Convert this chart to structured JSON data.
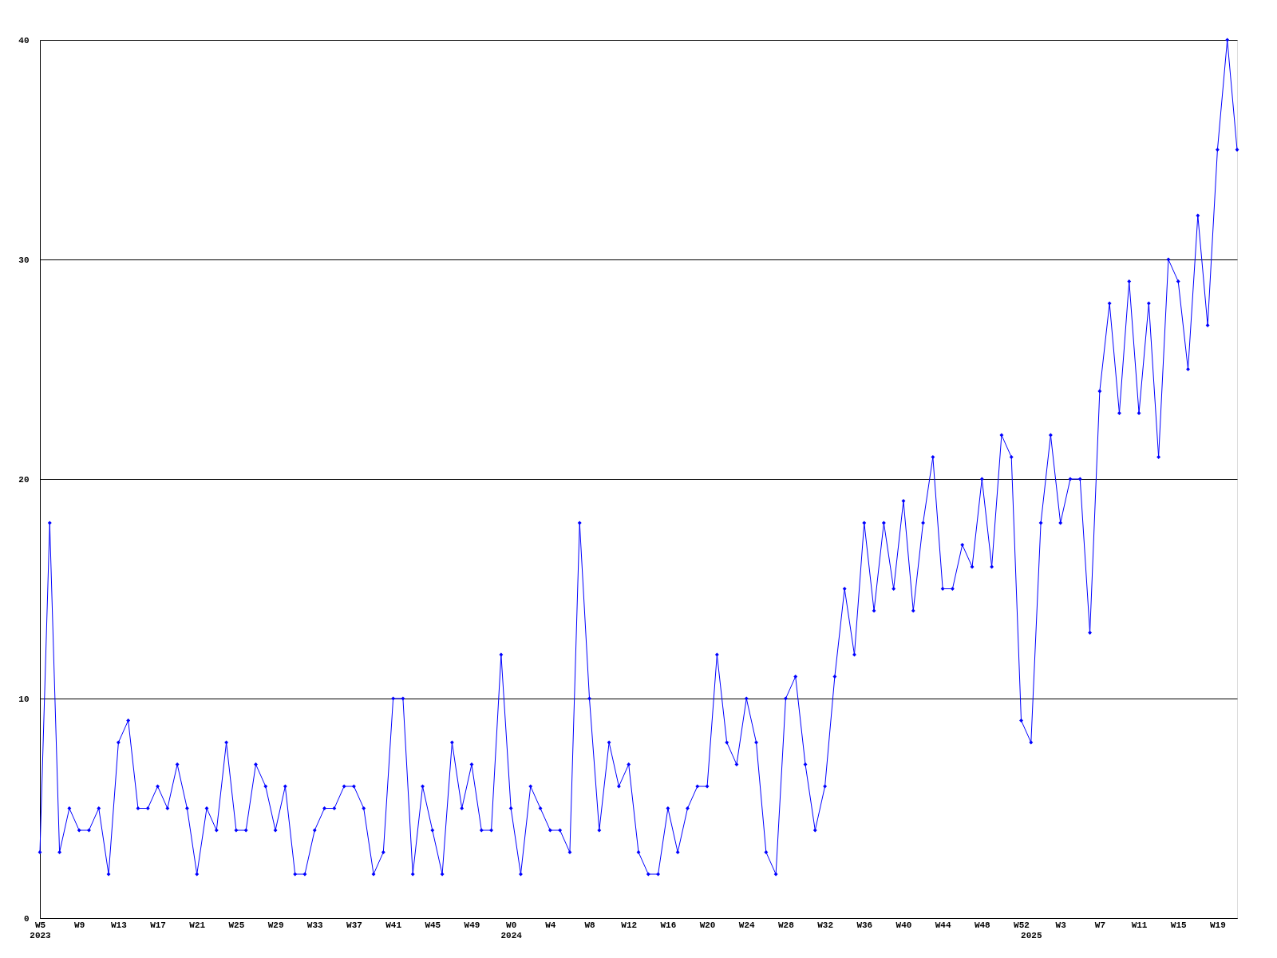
{
  "chart_data": {
    "type": "line",
    "categories": [
      "W5\n2023",
      null,
      null,
      null,
      "W9",
      null,
      null,
      null,
      "W13",
      null,
      null,
      null,
      "W17",
      null,
      null,
      null,
      "W21",
      null,
      null,
      null,
      "W25",
      null,
      null,
      null,
      "W29",
      null,
      null,
      null,
      "W33",
      null,
      null,
      null,
      "W37",
      null,
      null,
      null,
      "W41",
      null,
      null,
      null,
      "W45",
      null,
      null,
      null,
      "W49",
      null,
      null,
      null,
      "W0\n2024",
      null,
      null,
      null,
      "W4",
      null,
      null,
      null,
      "W8",
      null,
      null,
      null,
      "W12",
      null,
      null,
      null,
      "W16",
      null,
      null,
      null,
      "W20",
      null,
      null,
      null,
      "W24",
      null,
      null,
      null,
      "W28",
      null,
      null,
      null,
      "W32",
      null,
      null,
      null,
      "W36",
      null,
      null,
      null,
      "W40",
      null,
      null,
      null,
      "W44",
      null,
      null,
      null,
      "W48",
      null,
      null,
      null,
      "W52",
      "\n2025",
      null,
      null,
      "W3",
      null,
      null,
      null,
      "W7",
      null,
      null,
      null,
      "W11",
      null,
      null,
      null,
      "W15",
      null,
      null,
      null,
      "W19",
      null,
      null
    ],
    "series": [
      {
        "color": "#0000ff",
        "values": [
          3,
          18,
          3,
          5,
          4,
          4,
          5,
          2,
          8,
          9,
          5,
          5,
          6,
          5,
          7,
          5,
          2,
          5,
          4,
          8,
          4,
          4,
          7,
          6,
          4,
          6,
          2,
          2,
          4,
          5,
          5,
          6,
          6,
          5,
          2,
          3,
          10,
          10,
          2,
          6,
          4,
          2,
          8,
          5,
          7,
          4,
          4,
          12,
          5,
          2,
          6,
          5,
          4,
          4,
          3,
          18,
          10,
          4,
          8,
          6,
          7,
          3,
          2,
          2,
          5,
          3,
          5,
          6,
          6,
          12,
          8,
          7,
          10,
          8,
          3,
          2,
          10,
          11,
          7,
          4,
          6,
          11,
          15,
          12,
          18,
          14,
          18,
          15,
          19,
          14,
          18,
          21,
          15,
          15,
          17,
          16,
          20,
          16,
          22,
          21,
          9,
          8,
          18,
          22,
          18,
          20,
          20,
          13,
          24,
          28,
          23,
          29,
          23,
          28,
          21,
          30,
          29,
          25,
          32,
          27,
          35,
          40,
          35
        ]
      }
    ],
    "ylim": [
      0,
      40
    ],
    "yticks": [
      0,
      10,
      20,
      30,
      40
    ],
    "grid": "y",
    "marker": "diamond",
    "line_style": "solid"
  }
}
